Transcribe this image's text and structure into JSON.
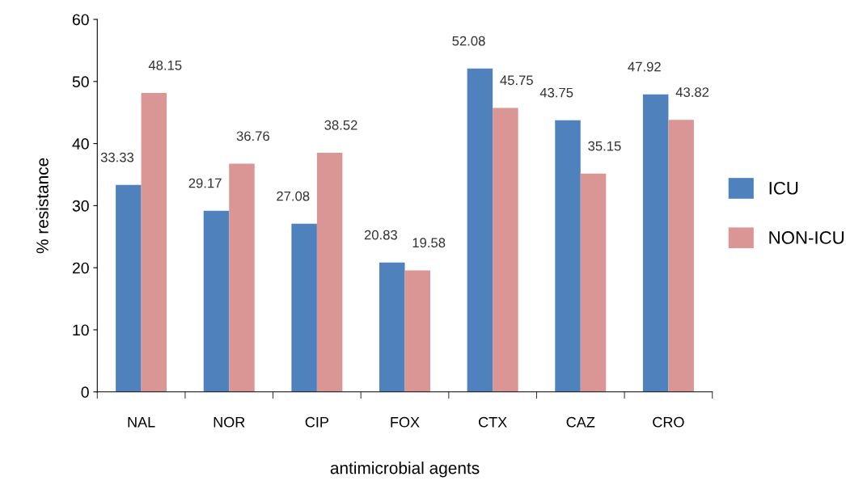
{
  "chart_data": {
    "type": "bar",
    "xlabel": "antimicrobial agents",
    "ylabel": "% resistance",
    "categories": [
      "NAL",
      "NOR",
      "CIP",
      "FOX",
      "CTX",
      "CAZ",
      "CRO"
    ],
    "series": [
      {
        "name": "ICU",
        "color": "#4f81bd",
        "values": [
          33.33,
          29.17,
          27.08,
          20.83,
          52.08,
          43.75,
          47.92
        ]
      },
      {
        "name": "NON-ICU",
        "color": "#d99694",
        "values": [
          48.15,
          36.76,
          38.52,
          19.58,
          45.75,
          35.15,
          43.82
        ]
      }
    ],
    "ylim": [
      0,
      60
    ],
    "yticks": [
      0,
      10,
      20,
      30,
      40,
      50,
      60
    ],
    "grid": false,
    "legend": "right",
    "data_labels": true
  }
}
